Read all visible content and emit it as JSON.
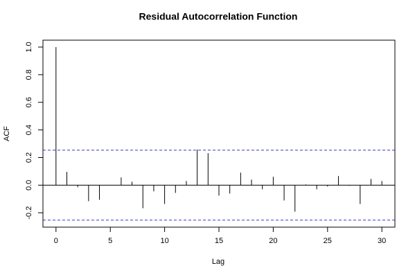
{
  "chart_data": {
    "type": "acf",
    "title": "Residual Autocorrelation Function",
    "xlabel": "Lag",
    "ylabel": "ACF",
    "x": [
      0,
      1,
      2,
      3,
      4,
      5,
      6,
      7,
      8,
      9,
      10,
      11,
      12,
      13,
      14,
      15,
      16,
      17,
      18,
      19,
      20,
      21,
      22,
      23,
      24,
      25,
      26,
      27,
      28,
      29,
      30
    ],
    "values": [
      1.0,
      0.096,
      -0.015,
      -0.116,
      -0.106,
      0.002,
      0.056,
      0.025,
      -0.167,
      -0.045,
      -0.136,
      -0.056,
      0.03,
      0.258,
      0.232,
      -0.076,
      -0.061,
      0.091,
      0.04,
      -0.03,
      0.061,
      -0.111,
      -0.192,
      0.005,
      -0.03,
      -0.01,
      0.066,
      -0.005,
      -0.136,
      0.045,
      0.03
    ],
    "color": "#000000",
    "conf_limits": [
      0.253,
      -0.253
    ],
    "conf_color": "#3333cc",
    "xlim": [
      -1.2,
      31.2
    ],
    "xticks": [
      0,
      5,
      10,
      15,
      20,
      25,
      30
    ],
    "ylim": [
      -0.304,
      1.05
    ],
    "yticks": [
      -0.2,
      {
        "value": 0,
        "label": "0.0"
      },
      0.2,
      0.4,
      0.6,
      0.8,
      {
        "value": 1,
        "label": "1.0"
      }
    ]
  }
}
